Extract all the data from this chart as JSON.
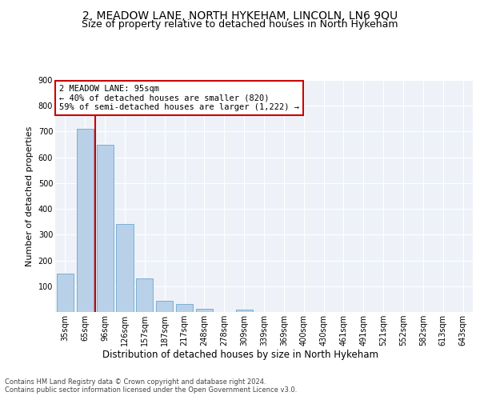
{
  "title": "2, MEADOW LANE, NORTH HYKEHAM, LINCOLN, LN6 9QU",
  "subtitle": "Size of property relative to detached houses in North Hykeham",
  "xlabel": "Distribution of detached houses by size in North Hykeham",
  "ylabel": "Number of detached properties",
  "categories": [
    "35sqm",
    "65sqm",
    "96sqm",
    "126sqm",
    "157sqm",
    "187sqm",
    "217sqm",
    "248sqm",
    "278sqm",
    "309sqm",
    "339sqm",
    "369sqm",
    "400sqm",
    "430sqm",
    "461sqm",
    "491sqm",
    "521sqm",
    "552sqm",
    "582sqm",
    "613sqm",
    "643sqm"
  ],
  "values": [
    150,
    710,
    650,
    340,
    130,
    42,
    30,
    12,
    0,
    8,
    0,
    0,
    0,
    0,
    0,
    0,
    0,
    0,
    0,
    0,
    0
  ],
  "bar_color": "#b8d0e8",
  "bar_edge_color": "#7aafd4",
  "vline_color": "#cc0000",
  "annotation_text": "2 MEADOW LANE: 95sqm\n← 40% of detached houses are smaller (820)\n59% of semi-detached houses are larger (1,222) →",
  "annotation_box_color": "#ffffff",
  "annotation_box_edge_color": "#cc0000",
  "ylim": [
    0,
    900
  ],
  "yticks": [
    0,
    100,
    200,
    300,
    400,
    500,
    600,
    700,
    800,
    900
  ],
  "footer": "Contains HM Land Registry data © Crown copyright and database right 2024.\nContains public sector information licensed under the Open Government Licence v3.0.",
  "bg_color": "#eef2f8",
  "grid_color": "#ffffff",
  "title_fontsize": 10,
  "subtitle_fontsize": 9,
  "tick_fontsize": 7,
  "ylabel_fontsize": 8,
  "xlabel_fontsize": 8.5,
  "annotation_fontsize": 7.5,
  "footer_fontsize": 6
}
